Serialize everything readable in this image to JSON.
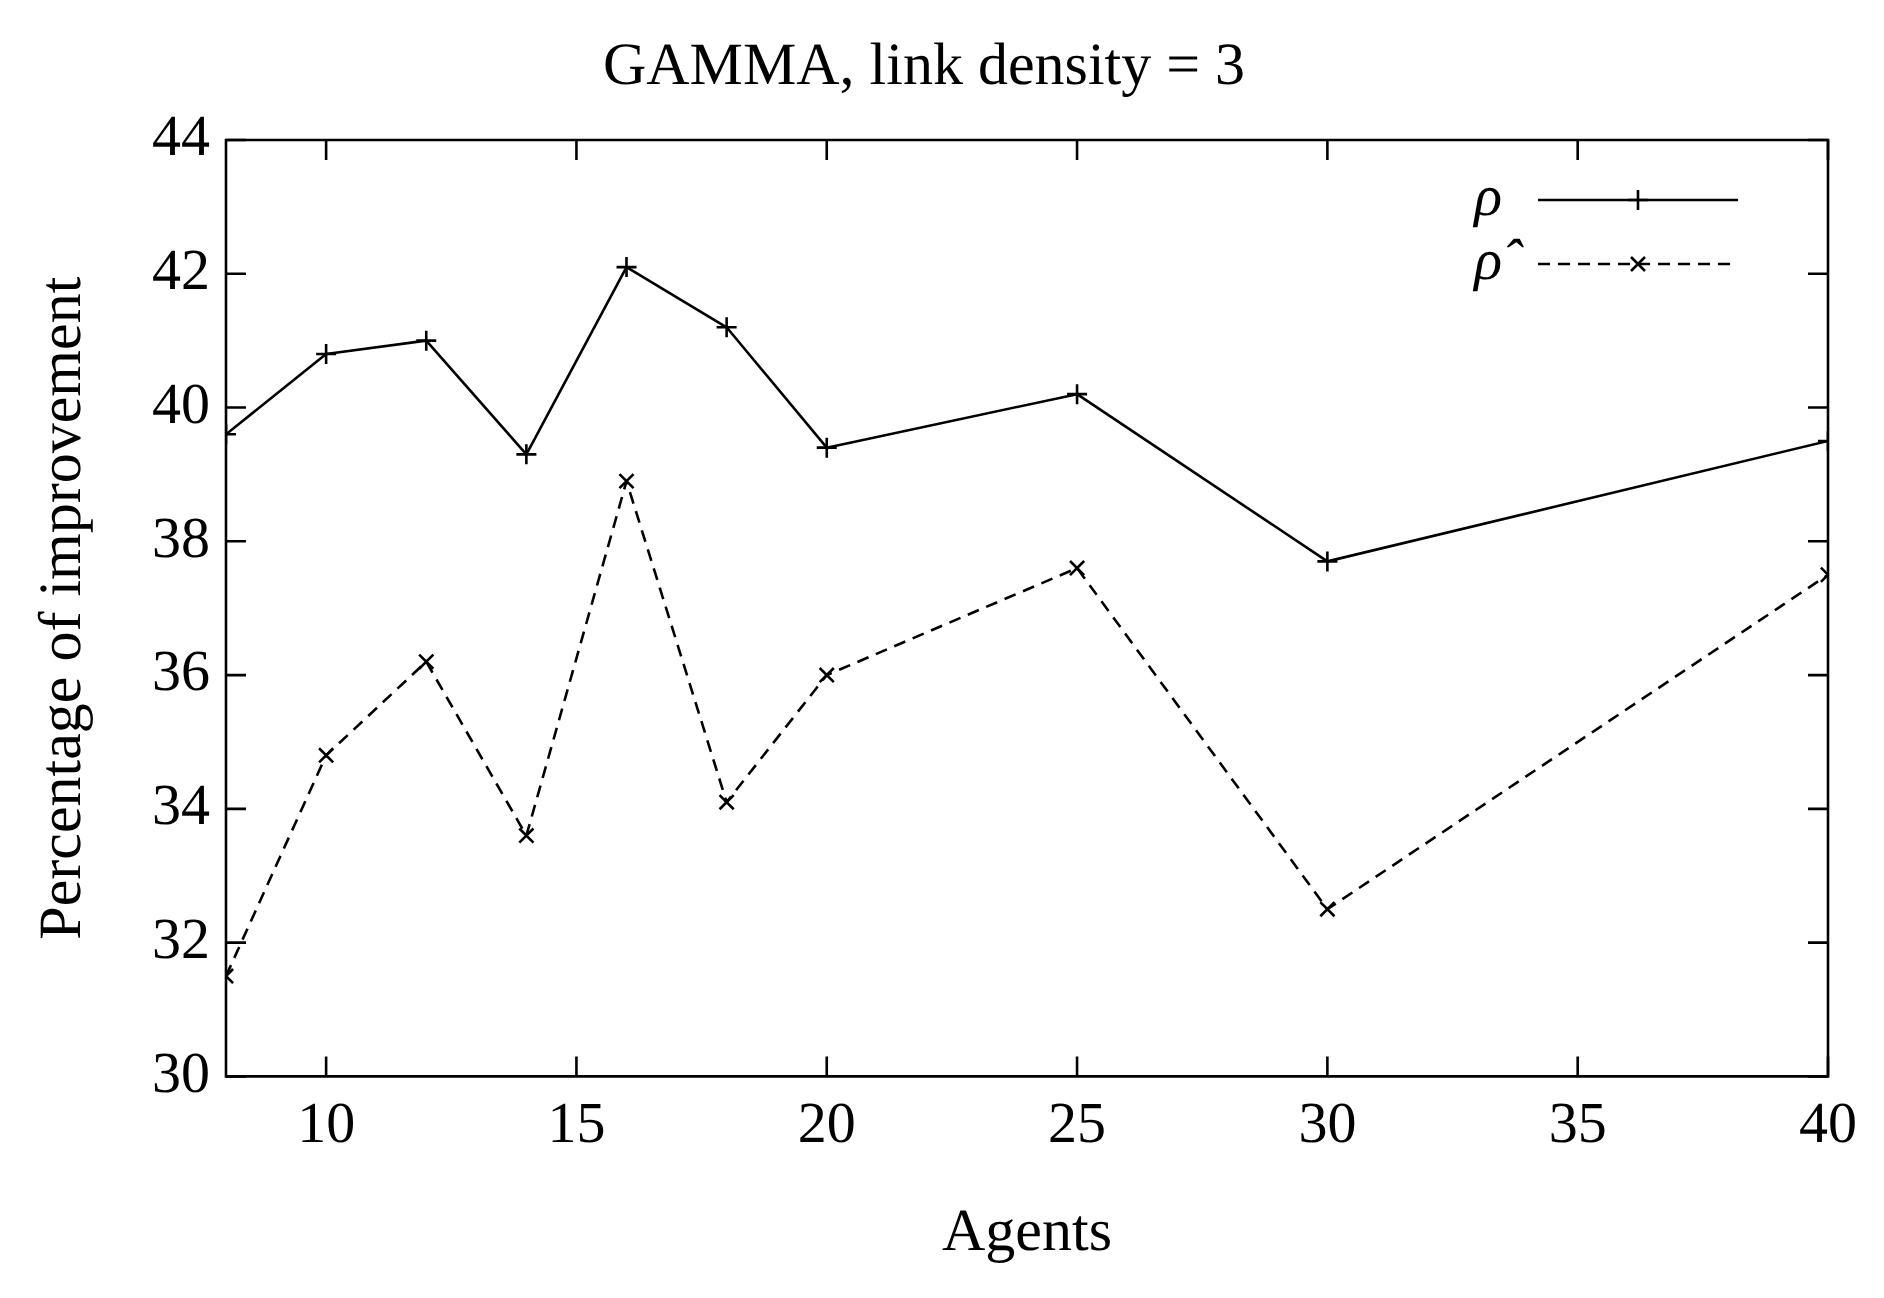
{
  "chart_data": {
    "type": "line",
    "title": "GAMMA, link density = 3",
    "xlabel": "Agents",
    "ylabel": "Percentage of improvement",
    "x": [
      8,
      10,
      12,
      14,
      16,
      18,
      20,
      25,
      30,
      40
    ],
    "series": [
      {
        "name": "ρ",
        "color": "#000000",
        "marker": "plus",
        "line_style": "solid",
        "values": [
          39.6,
          40.8,
          41.0,
          39.3,
          42.1,
          41.2,
          39.4,
          40.2,
          37.7,
          39.5
        ]
      },
      {
        "name": "ρ̂",
        "color": "#000000",
        "marker": "cross",
        "line_style": "dashed",
        "values": [
          31.5,
          34.8,
          36.2,
          33.6,
          38.9,
          34.1,
          36.0,
          37.6,
          32.5,
          37.5
        ]
      }
    ],
    "xlim": [
      8,
      40
    ],
    "xticks": [
      10,
      15,
      20,
      25,
      30,
      35,
      40
    ],
    "ylim": [
      30,
      44
    ],
    "yticks": [
      30,
      32,
      34,
      36,
      38,
      40,
      42,
      44
    ],
    "grid": false,
    "legend": "top right"
  }
}
